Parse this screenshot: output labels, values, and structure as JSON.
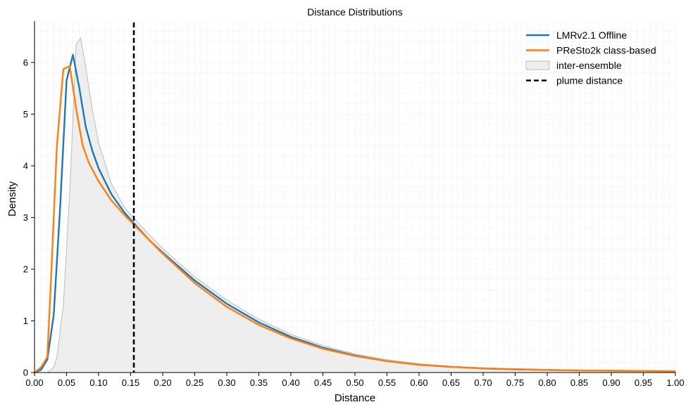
{
  "chart_data": {
    "type": "line",
    "title": "Distance Distributions",
    "xlabel": "Distance",
    "ylabel": "Density",
    "xlim": [
      0.0,
      1.0
    ],
    "ylim": [
      0,
      6.8
    ],
    "xticks": [
      "0.00",
      "0.05",
      "0.10",
      "0.15",
      "0.20",
      "0.25",
      "0.30",
      "0.35",
      "0.40",
      "0.45",
      "0.50",
      "0.55",
      "0.60",
      "0.65",
      "0.70",
      "0.75",
      "0.80",
      "0.85",
      "0.90",
      "0.95",
      "1.00"
    ],
    "yticks": [
      "0",
      "1",
      "2",
      "3",
      "4",
      "5",
      "6"
    ],
    "grid": "minor, light",
    "legend_position": "top-right",
    "series": [
      {
        "name": "LMRv2.1 Offline",
        "color": "#1f77b4",
        "x": [
          0.0,
          0.01,
          0.02,
          0.03,
          0.04,
          0.05,
          0.06,
          0.07,
          0.08,
          0.09,
          0.1,
          0.12,
          0.14,
          0.16,
          0.18,
          0.2,
          0.25,
          0.3,
          0.35,
          0.4,
          0.45,
          0.5,
          0.55,
          0.6,
          0.65,
          0.7,
          0.75,
          0.8,
          0.85,
          0.9,
          0.95,
          1.0
        ],
        "y": [
          0.0,
          0.05,
          0.25,
          1.12,
          3.2,
          5.65,
          6.15,
          5.5,
          4.75,
          4.3,
          3.95,
          3.45,
          3.1,
          2.82,
          2.55,
          2.32,
          1.78,
          1.33,
          0.97,
          0.69,
          0.48,
          0.33,
          0.22,
          0.15,
          0.11,
          0.08,
          0.06,
          0.05,
          0.04,
          0.035,
          0.03,
          0.025
        ]
      },
      {
        "name": "PReSto2k class-based",
        "color": "#ff7f0e",
        "x": [
          0.0,
          0.01,
          0.02,
          0.025,
          0.035,
          0.045,
          0.055,
          0.065,
          0.075,
          0.085,
          0.1,
          0.12,
          0.14,
          0.16,
          0.18,
          0.2,
          0.25,
          0.3,
          0.35,
          0.4,
          0.45,
          0.5,
          0.55,
          0.6,
          0.65,
          0.7,
          0.75,
          0.8,
          0.85,
          0.9,
          0.95,
          1.0
        ],
        "y": [
          0.0,
          0.1,
          0.3,
          1.6,
          4.4,
          5.87,
          5.93,
          5.1,
          4.4,
          4.05,
          3.7,
          3.33,
          3.05,
          2.8,
          2.55,
          2.3,
          1.73,
          1.27,
          0.92,
          0.66,
          0.46,
          0.32,
          0.22,
          0.15,
          0.11,
          0.08,
          0.065,
          0.05,
          0.04,
          0.035,
          0.03,
          0.025
        ]
      }
    ],
    "band": {
      "name": "inter-ensemble",
      "fill": "#eeeeee",
      "edge": "#bbbbbb",
      "x": [
        0.0,
        0.01,
        0.02,
        0.03,
        0.035,
        0.045,
        0.055,
        0.065,
        0.072,
        0.08,
        0.09,
        0.1,
        0.12,
        0.14,
        0.16,
        0.18,
        0.2,
        0.25,
        0.3,
        0.35,
        0.4,
        0.45,
        0.5,
        0.55,
        0.6,
        0.65,
        0.7,
        0.75,
        0.8,
        0.85,
        0.9,
        0.95,
        1.0
      ],
      "y_upper": [
        0.0,
        0.0,
        0.0,
        0.1,
        0.3,
        1.3,
        3.5,
        6.35,
        6.47,
        5.9,
        5.1,
        4.45,
        3.65,
        3.2,
        2.92,
        2.65,
        2.4,
        1.85,
        1.4,
        1.03,
        0.74,
        0.52,
        0.36,
        0.25,
        0.17,
        0.12,
        0.09,
        0.07,
        0.055,
        0.045,
        0.04,
        0.035,
        0.03
      ],
      "y_lower": [
        0.0,
        0.0,
        0.0,
        0.0,
        0.0,
        0.0,
        0.0,
        0.0,
        0.0,
        0.0,
        0.0,
        0.0,
        0.0,
        0.0,
        0.0,
        0.0,
        0.0,
        0.0,
        0.0,
        0.0,
        0.0,
        0.0,
        0.0,
        0.0,
        0.0,
        0.0,
        0.0,
        0.0,
        0.0,
        0.0,
        0.0,
        0.0,
        0.0
      ]
    },
    "vline": {
      "name": "plume distance",
      "x": 0.155,
      "color": "#000000",
      "style": "dashed"
    }
  }
}
